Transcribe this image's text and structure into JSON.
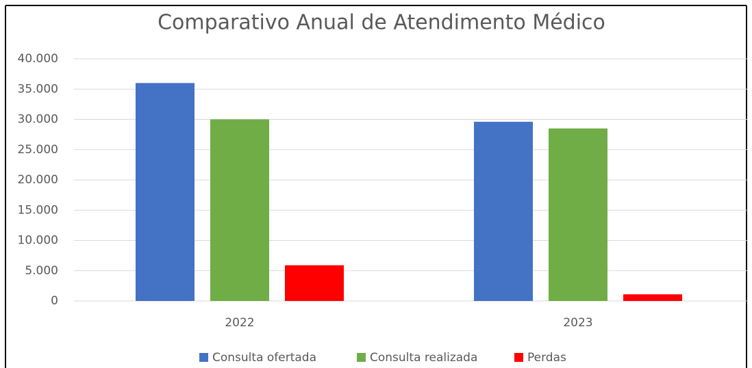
{
  "chart_data": {
    "type": "bar",
    "title": "Comparativo Anual de Atendimento Médico",
    "categories": [
      "2022",
      "2023"
    ],
    "series": [
      {
        "name": "Consulta ofertada",
        "color": "#4472c4",
        "values": [
          36000,
          29600
        ]
      },
      {
        "name": "Consulta realizada",
        "color": "#70ad47",
        "values": [
          30000,
          28500
        ]
      },
      {
        "name": "Perdas",
        "color": "#ff0000",
        "values": [
          5900,
          1100
        ]
      }
    ],
    "ylim": [
      0,
      40000
    ],
    "yticks": [
      0,
      {
        "value": 5000,
        "label": "5.000"
      },
      {
        "value": 10000,
        "label": "10.000"
      },
      {
        "value": 15000,
        "label": "15.000"
      },
      {
        "value": 20000,
        "label": "20.000"
      },
      {
        "value": 25000,
        "label": "25.000"
      },
      {
        "value": 30000,
        "label": "30.000"
      },
      {
        "value": 35000,
        "label": "35.000"
      },
      {
        "value": 40000,
        "label": "40.000"
      }
    ],
    "grid": true,
    "legend": "bottom"
  }
}
